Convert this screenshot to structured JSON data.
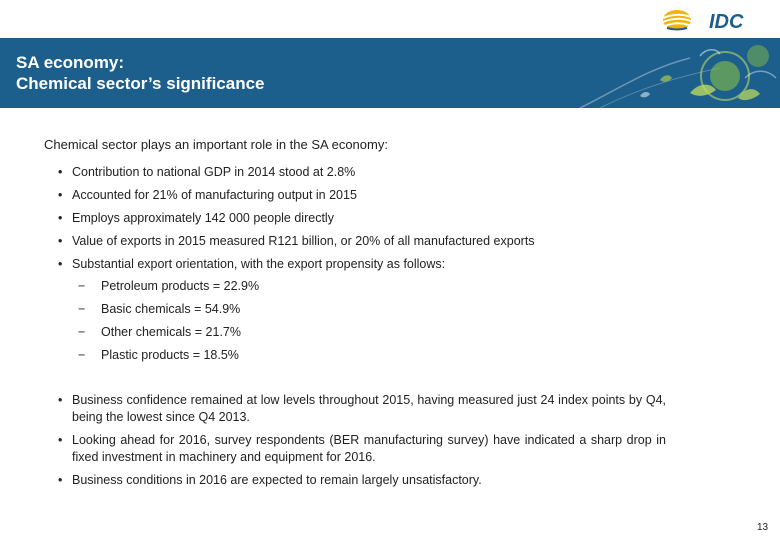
{
  "logo": {
    "text": "IDC"
  },
  "header": {
    "title_line1": "SA economy:",
    "title_line2": "Chemical sector’s significance"
  },
  "intro": {
    "bold": "Chemical sector",
    "rest": " plays an important role in the SA economy:"
  },
  "bullets": [
    "Contribution to national GDP in 2014 stood at 2.8%",
    "Accounted for 21% of manufacturing output in 2015",
    "Employs approximately 142 000 people directly",
    "Value of exports in 2015 measured R121 billion, or 20% of all manufactured exports",
    "Substantial export orientation, with the export propensity as follows:"
  ],
  "sub_bullets": [
    "Petroleum products = 22.9%",
    "Basic chemicals = 54.9%",
    "Other chemicals = 21.7%",
    "Plastic products  = 18.5%"
  ],
  "bullets2": [
    "Business confidence remained at low levels throughout 2015, having measured just 24 index points by Q4, being the lowest since Q4 2013.",
    "Looking ahead for 2016, survey respondents (BER manufacturing survey) have indicated a sharp drop in fixed investment in machinery and equipment for 2016.",
    "Business conditions in 2016 are expected to remain largely unsatisfactory."
  ],
  "bullet_marker": "•",
  "sub_marker": "−",
  "page_number": "13",
  "colors": {
    "banner": "#1d5f8c",
    "logo_blue": "#1d5f8c",
    "logo_gold": "#f2a900"
  }
}
